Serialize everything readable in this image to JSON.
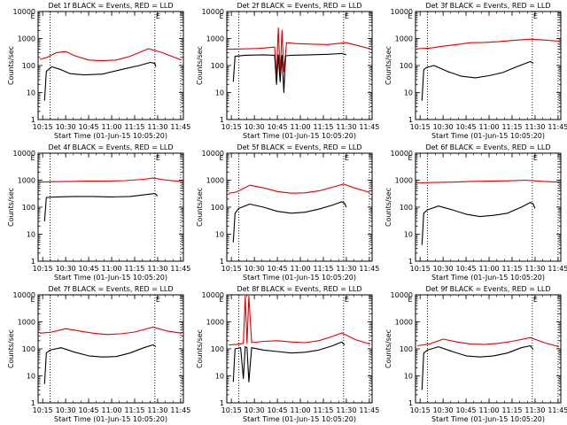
{
  "figure": {
    "xlabel": "Start Time (01-Jun-15 10:05:20)",
    "ylabel": "Counts/sec",
    "x_tick_labels": [
      "10:15",
      "10:30",
      "10:45",
      "11:00",
      "11:15",
      "11:30",
      "11:45"
    ],
    "y_tick_labels": [
      "1",
      "10",
      "100",
      "1000",
      "10000"
    ],
    "flag_letter": "E",
    "colors": {
      "events": "#000000",
      "lld": "#e00000",
      "axes": "#000000",
      "background": "#ffffff"
    }
  },
  "chart_data": [
    {
      "type": "line",
      "title": "Det 1f BLACK = Events, RED = LLD",
      "y_scale": "log",
      "ylim": [
        1,
        10000
      ],
      "xlim": [
        10.2,
        11.78
      ],
      "x_ticks": [
        10.25,
        10.5,
        10.75,
        11.0,
        11.25,
        11.5,
        11.75
      ],
      "markers": [
        10.33,
        11.47,
        11.75
      ],
      "series": [
        {
          "name": "Events",
          "color": "#000000",
          "x": [
            10.27,
            10.29,
            10.31,
            10.35,
            10.45,
            10.55,
            10.7,
            10.9,
            11.1,
            11.3,
            11.42,
            11.47,
            11.48
          ],
          "y": [
            5,
            60,
            70,
            90,
            70,
            50,
            45,
            48,
            70,
            100,
            130,
            120,
            90
          ]
        },
        {
          "name": "LLD",
          "color": "#e00000",
          "x": [
            10.22,
            10.3,
            10.4,
            10.5,
            10.6,
            10.75,
            10.9,
            11.05,
            11.2,
            11.4,
            11.55,
            11.7,
            11.76
          ],
          "y": [
            170,
            200,
            300,
            330,
            230,
            160,
            150,
            160,
            220,
            420,
            300,
            190,
            160
          ]
        }
      ]
    },
    {
      "type": "line",
      "title": "Det 2f BLACK = Events, RED = LLD",
      "y_scale": "log",
      "ylim": [
        1,
        10000
      ],
      "xlim": [
        10.2,
        11.78
      ],
      "x_ticks": [
        10.25,
        10.5,
        10.75,
        11.0,
        11.25,
        11.5,
        11.75
      ],
      "markers": [
        10.33,
        11.47,
        11.75
      ],
      "series": [
        {
          "name": "Events",
          "color": "#000000",
          "x": [
            10.27,
            10.29,
            10.4,
            10.6,
            10.72,
            10.74,
            10.76,
            10.78,
            10.8,
            10.82,
            10.84,
            10.9,
            11.1,
            11.3,
            11.45,
            11.5
          ],
          "y": [
            25,
            220,
            240,
            250,
            240,
            20,
            250,
            25,
            240,
            10,
            230,
            240,
            250,
            260,
            280,
            250
          ]
        },
        {
          "name": "LLD",
          "color": "#e00000",
          "x": [
            10.22,
            10.35,
            10.55,
            10.72,
            10.74,
            10.76,
            10.78,
            10.8,
            10.82,
            10.85,
            10.95,
            11.1,
            11.3,
            11.5,
            11.65,
            11.76
          ],
          "y": [
            400,
            410,
            430,
            480,
            40,
            2500,
            50,
            2000,
            60,
            700,
            650,
            620,
            600,
            700,
            520,
            420
          ]
        }
      ]
    },
    {
      "type": "line",
      "title": "Det 3f BLACK = Events, RED = LLD",
      "y_scale": "log",
      "ylim": [
        1,
        10000
      ],
      "xlim": [
        10.2,
        11.78
      ],
      "x_ticks": [
        10.25,
        10.5,
        10.75,
        11.0,
        11.25,
        11.5,
        11.75
      ],
      "markers": [
        10.33,
        11.47,
        11.75
      ],
      "series": [
        {
          "name": "Events",
          "color": "#000000",
          "x": [
            10.27,
            10.29,
            10.32,
            10.4,
            10.55,
            10.7,
            10.85,
            11.0,
            11.15,
            11.3,
            11.45,
            11.48
          ],
          "y": [
            5,
            70,
            85,
            100,
            60,
            40,
            35,
            42,
            55,
            90,
            140,
            120
          ]
        },
        {
          "name": "LLD",
          "color": "#e00000",
          "x": [
            10.22,
            10.35,
            10.5,
            10.65,
            10.8,
            10.95,
            11.1,
            11.25,
            11.45,
            11.6,
            11.76
          ],
          "y": [
            420,
            440,
            520,
            600,
            700,
            720,
            760,
            850,
            950,
            880,
            800
          ]
        }
      ]
    },
    {
      "type": "line",
      "title": "Det 4f BLACK = Events, RED = LLD",
      "y_scale": "log",
      "ylim": [
        1,
        10000
      ],
      "xlim": [
        10.2,
        11.78
      ],
      "x_ticks": [
        10.25,
        10.5,
        10.75,
        11.0,
        11.25,
        11.5,
        11.75
      ],
      "markers": [
        10.33,
        11.47,
        11.75
      ],
      "series": [
        {
          "name": "Events",
          "color": "#000000",
          "x": [
            10.27,
            10.29,
            10.4,
            10.6,
            10.8,
            11.0,
            11.2,
            11.4,
            11.47,
            11.5
          ],
          "y": [
            30,
            230,
            240,
            250,
            250,
            240,
            250,
            300,
            320,
            260
          ]
        },
        {
          "name": "LLD",
          "color": "#e00000",
          "x": [
            10.22,
            10.35,
            10.55,
            10.75,
            10.95,
            11.15,
            11.35,
            11.45,
            11.6,
            11.76
          ],
          "y": [
            850,
            880,
            900,
            920,
            930,
            960,
            1080,
            1200,
            1000,
            900
          ]
        }
      ]
    },
    {
      "type": "line",
      "title": "Det 5f BLACK = Events, RED = LLD",
      "y_scale": "log",
      "ylim": [
        1,
        10000
      ],
      "xlim": [
        10.2,
        11.78
      ],
      "x_ticks": [
        10.25,
        10.5,
        10.75,
        11.0,
        11.25,
        11.5,
        11.75
      ],
      "markers": [
        10.33,
        11.47,
        11.75
      ],
      "series": [
        {
          "name": "Events",
          "color": "#000000",
          "x": [
            10.27,
            10.29,
            10.33,
            10.45,
            10.6,
            10.75,
            10.9,
            11.05,
            11.2,
            11.35,
            11.45,
            11.48,
            11.5
          ],
          "y": [
            5,
            60,
            90,
            130,
            100,
            70,
            60,
            65,
            85,
            120,
            160,
            140,
            100
          ]
        },
        {
          "name": "LLD",
          "color": "#e00000",
          "x": [
            10.22,
            10.3,
            10.45,
            10.6,
            10.75,
            10.9,
            11.05,
            11.2,
            11.35,
            11.47,
            11.6,
            11.76
          ],
          "y": [
            330,
            360,
            650,
            520,
            380,
            330,
            340,
            400,
            550,
            720,
            500,
            350
          ]
        }
      ]
    },
    {
      "type": "line",
      "title": "Det 6f BLACK = Events, RED = LLD",
      "y_scale": "log",
      "ylim": [
        1,
        10000
      ],
      "xlim": [
        10.2,
        11.78
      ],
      "x_ticks": [
        10.25,
        10.5,
        10.75,
        11.0,
        11.25,
        11.5,
        11.75
      ],
      "markers": [
        10.33,
        11.47,
        11.75
      ],
      "series": [
        {
          "name": "Events",
          "color": "#000000",
          "x": [
            10.27,
            10.29,
            10.33,
            10.45,
            10.6,
            10.75,
            10.9,
            11.05,
            11.2,
            11.35,
            11.45,
            11.48,
            11.5
          ],
          "y": [
            4,
            60,
            80,
            110,
            80,
            55,
            45,
            50,
            60,
            100,
            150,
            130,
            90
          ]
        },
        {
          "name": "LLD",
          "color": "#e00000",
          "x": [
            10.22,
            10.4,
            10.6,
            10.8,
            11.0,
            11.2,
            11.4,
            11.6,
            11.76
          ],
          "y": [
            800,
            820,
            850,
            900,
            920,
            950,
            1000,
            900,
            850
          ]
        }
      ]
    },
    {
      "type": "line",
      "title": "Det 7f BLACK = Events, RED = LLD",
      "y_scale": "log",
      "ylim": [
        1,
        10000
      ],
      "xlim": [
        10.2,
        11.78
      ],
      "x_ticks": [
        10.25,
        10.5,
        10.75,
        11.0,
        11.25,
        11.5,
        11.75
      ],
      "markers": [
        10.33,
        11.47,
        11.75
      ],
      "series": [
        {
          "name": "Events",
          "color": "#000000",
          "x": [
            10.27,
            10.29,
            10.33,
            10.45,
            10.6,
            10.75,
            10.9,
            11.05,
            11.2,
            11.35,
            11.45,
            11.48
          ],
          "y": [
            5,
            70,
            90,
            110,
            75,
            55,
            50,
            52,
            70,
            110,
            140,
            120
          ]
        },
        {
          "name": "LLD",
          "color": "#e00000",
          "x": [
            10.22,
            10.35,
            10.5,
            10.65,
            10.8,
            10.95,
            11.1,
            11.25,
            11.45,
            11.6,
            11.76
          ],
          "y": [
            380,
            420,
            560,
            460,
            380,
            340,
            360,
            420,
            640,
            460,
            380
          ]
        }
      ]
    },
    {
      "type": "line",
      "title": "Det 8f BLACK = Events, RED = LLD",
      "y_scale": "log",
      "ylim": [
        1,
        10000
      ],
      "xlim": [
        10.2,
        11.78
      ],
      "x_ticks": [
        10.25,
        10.5,
        10.75,
        11.0,
        11.25,
        11.5,
        11.75
      ],
      "markers": [
        10.33,
        11.47,
        11.75
      ],
      "series": [
        {
          "name": "Events",
          "color": "#000000",
          "x": [
            10.27,
            10.29,
            10.35,
            10.38,
            10.4,
            10.42,
            10.44,
            10.47,
            10.6,
            10.75,
            10.9,
            11.05,
            11.2,
            11.35,
            11.45,
            11.48
          ],
          "y": [
            6,
            100,
            110,
            8,
            120,
            110,
            6,
            110,
            90,
            80,
            70,
            75,
            90,
            130,
            180,
            140
          ]
        },
        {
          "name": "LLD",
          "color": "#e00000",
          "x": [
            10.22,
            10.3,
            10.38,
            10.4,
            10.42,
            10.44,
            10.47,
            10.6,
            10.75,
            10.9,
            11.05,
            11.2,
            11.35,
            11.45,
            11.6,
            11.76
          ],
          "y": [
            140,
            145,
            160,
            9000,
            160,
            9000,
            170,
            190,
            200,
            180,
            170,
            200,
            290,
            390,
            220,
            150
          ]
        }
      ]
    },
    {
      "type": "line",
      "title": "Det 9f BLACK = Events, RED = LLD",
      "y_scale": "log",
      "ylim": [
        1,
        10000
      ],
      "xlim": [
        10.2,
        11.78
      ],
      "x_ticks": [
        10.25,
        10.5,
        10.75,
        11.0,
        11.25,
        11.5,
        11.75
      ],
      "markers": [
        10.33,
        11.47,
        11.75
      ],
      "series": [
        {
          "name": "Events",
          "color": "#000000",
          "x": [
            10.27,
            10.29,
            10.33,
            10.45,
            10.6,
            10.75,
            10.9,
            11.05,
            11.2,
            11.35,
            11.45,
            11.48
          ],
          "y": [
            3,
            70,
            90,
            120,
            80,
            55,
            50,
            55,
            70,
            110,
            130,
            95
          ]
        },
        {
          "name": "LLD",
          "color": "#e00000",
          "x": [
            10.22,
            10.35,
            10.5,
            10.65,
            10.8,
            10.95,
            11.1,
            11.25,
            11.45,
            11.6,
            11.76
          ],
          "y": [
            130,
            150,
            230,
            180,
            150,
            145,
            160,
            190,
            260,
            170,
            120
          ]
        }
      ]
    }
  ]
}
